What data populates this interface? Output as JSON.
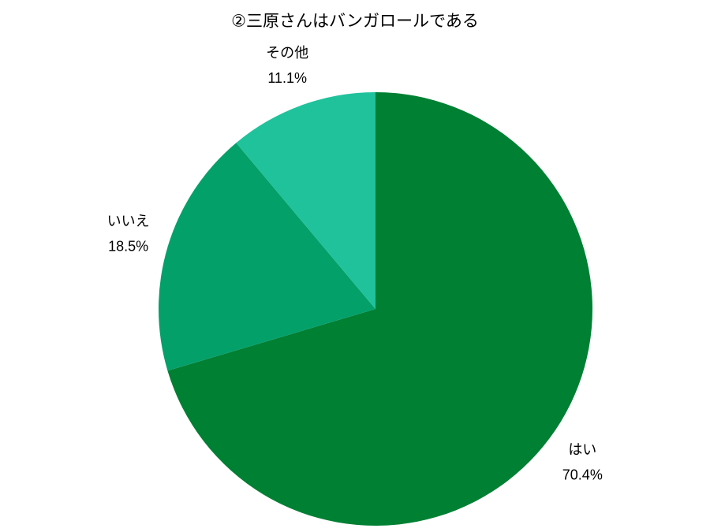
{
  "chart_data": {
    "type": "pie",
    "title": "②三原さんはバンガロールである",
    "categories": [
      "はい",
      "いいえ",
      "その他"
    ],
    "values": [
      70.4,
      18.5,
      11.1
    ],
    "value_labels": [
      "70.4%",
      "18.5%",
      "11.1%"
    ],
    "colors": [
      "#008033",
      "#04a06a",
      "#20c29c"
    ]
  }
}
